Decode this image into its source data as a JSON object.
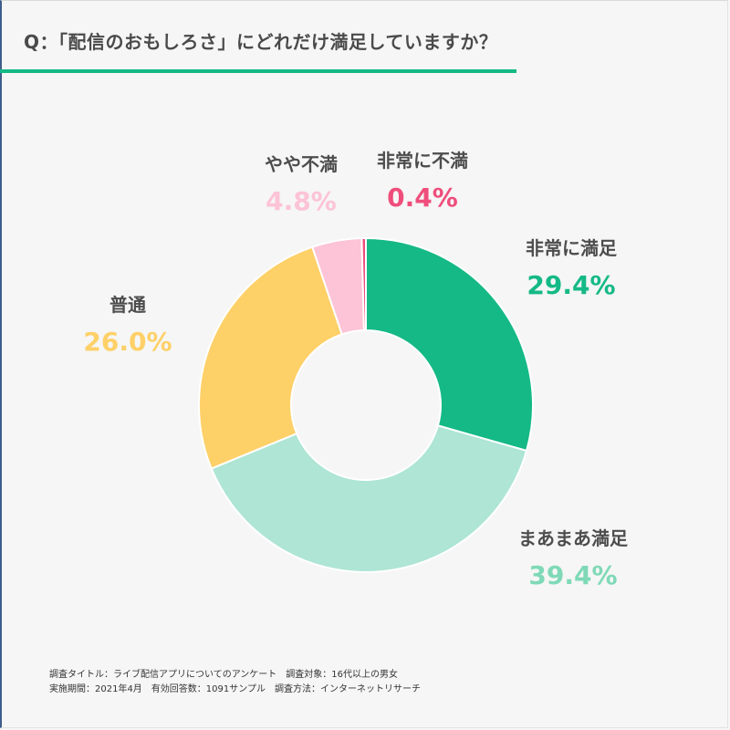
{
  "title": "Q：「配信のおもしろさ」にどれだけ満足していますか？",
  "colors": {
    "accent": "#15b986",
    "rule": "#15b986"
  },
  "chart_data": {
    "type": "pie",
    "donut": true,
    "categories": [
      "非常に満足",
      "まあまあ満足",
      "普通",
      "やや不満",
      "非常に不満"
    ],
    "values": [
      29.4,
      39.4,
      26.0,
      4.8,
      0.4
    ],
    "value_labels": [
      "29.4%",
      "39.4%",
      "26.0%",
      "4.8%",
      "0.4%"
    ],
    "slice_colors": [
      "#15b986",
      "#aee5d5",
      "#fed068",
      "#fdc3d6",
      "#ef4e7c"
    ],
    "label_colors": [
      "#15b986",
      "#7fd9b7",
      "#fed068",
      "#fdc3d6",
      "#ef4e7c"
    ],
    "order": "clockwise from top",
    "legend": "none"
  },
  "footnote": {
    "line1": "調査タイトル：ライブ配信アプリについてのアンケート　調査対象：16代以上の男女",
    "line2": "実施期間：2021年4月　有効回答数：1091サンプル　調査方法：インターネットリサーチ"
  }
}
